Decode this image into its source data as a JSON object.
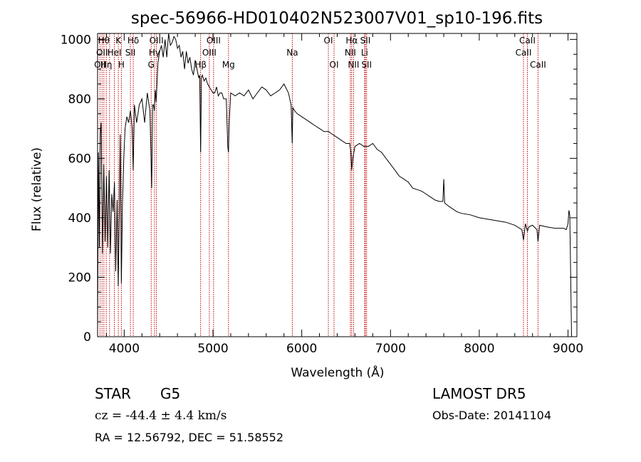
{
  "chart_data": {
    "type": "line",
    "title": "spec-56966-HD010402N523007V01_sp10-196.fits",
    "xlabel": "Wavelength (Å)",
    "ylabel": "Flux (relative)",
    "xlim": [
      3700,
      9100
    ],
    "ylim": [
      0,
      1020
    ],
    "xticks": [
      4000,
      5000,
      6000,
      7000,
      8000,
      9000
    ],
    "xtick_labels": [
      "4000",
      "5000",
      "6000",
      "7000",
      "8000",
      "9000"
    ],
    "yticks": [
      0,
      200,
      400,
      600,
      800,
      1000
    ],
    "ytick_labels": [
      "0",
      "200",
      "400",
      "600",
      "800",
      "1000"
    ],
    "grid": false,
    "legend": "none",
    "series": [
      {
        "x": [
          3700,
          3710,
          3720,
          3730,
          3740,
          3755,
          3770,
          3785,
          3800,
          3815,
          3830,
          3845,
          3860,
          3875,
          3890,
          3905,
          3920,
          3933,
          3945,
          3955,
          3968,
          3980,
          3995,
          4010,
          4030,
          4050,
          4070,
          4090,
          4101,
          4115,
          4140,
          4170,
          4200,
          4230,
          4260,
          4290,
          4310,
          4320,
          4330,
          4340,
          4350,
          4360,
          4380,
          4400,
          4420,
          4440,
          4460,
          4480,
          4500,
          4520,
          4540,
          4560,
          4580,
          4600,
          4620,
          4640,
          4660,
          4680,
          4700,
          4720,
          4740,
          4760,
          4780,
          4800,
          4820,
          4840,
          4850,
          4861,
          4870,
          4880,
          4900,
          4920,
          4940,
          4960,
          4980,
          5000,
          5020,
          5040,
          5060,
          5080,
          5100,
          5120,
          5150,
          5167,
          5175,
          5183,
          5200,
          5250,
          5300,
          5350,
          5400,
          5450,
          5500,
          5550,
          5600,
          5650,
          5700,
          5750,
          5800,
          5850,
          5880,
          5893,
          5900,
          5920,
          5950,
          6000,
          6050,
          6100,
          6150,
          6200,
          6250,
          6300,
          6350,
          6400,
          6450,
          6500,
          6540,
          6555,
          6563,
          6575,
          6600,
          6650,
          6700,
          6750,
          6800,
          6850,
          6900,
          6950,
          7000,
          7050,
          7100,
          7150,
          7200,
          7250,
          7300,
          7350,
          7400,
          7450,
          7500,
          7550,
          7590,
          7600,
          7610,
          7650,
          7700,
          7750,
          7800,
          7900,
          8000,
          8100,
          8200,
          8300,
          8400,
          8480,
          8498,
          8520,
          8542,
          8560,
          8600,
          8650,
          8662,
          8680,
          8750,
          8850,
          8950,
          8980,
          9000,
          9010,
          9020,
          9030,
          9040
        ],
        "y": [
          0,
          620,
          300,
          680,
          720,
          280,
          580,
          320,
          540,
          300,
          560,
          280,
          480,
          420,
          520,
          220,
          460,
          170,
          420,
          680,
          180,
          440,
          600,
          700,
          740,
          720,
          760,
          700,
          560,
          780,
          720,
          780,
          800,
          720,
          820,
          760,
          500,
          780,
          780,
          760,
          830,
          790,
          920,
          960,
          980,
          940,
          1000,
          940,
          1050,
          980,
          990,
          1010,
          1000,
          970,
          980,
          940,
          960,
          900,
          960,
          920,
          940,
          900,
          880,
          930,
          900,
          870,
          880,
          620,
          870,
          880,
          860,
          870,
          850,
          840,
          830,
          820,
          820,
          840,
          810,
          820,
          820,
          800,
          800,
          640,
          620,
          720,
          820,
          810,
          820,
          810,
          830,
          800,
          820,
          840,
          830,
          810,
          820,
          830,
          850,
          820,
          780,
          650,
          770,
          760,
          750,
          740,
          730,
          720,
          710,
          700,
          690,
          690,
          680,
          670,
          660,
          650,
          650,
          620,
          560,
          600,
          640,
          650,
          640,
          640,
          650,
          630,
          620,
          600,
          580,
          560,
          540,
          530,
          520,
          500,
          495,
          490,
          480,
          470,
          460,
          455,
          455,
          530,
          450,
          440,
          430,
          420,
          415,
          410,
          400,
          395,
          390,
          385,
          375,
          360,
          325,
          380,
          355,
          370,
          375,
          360,
          320,
          375,
          370,
          365,
          365,
          360,
          380,
          425,
          410,
          200,
          0
        ]
      }
    ],
    "line_markers": [
      {
        "x": 3727,
        "label": "OII",
        "row": 2
      },
      {
        "x": 3750,
        "label": "OII",
        "row": 1
      },
      {
        "x": 3771,
        "label": "Hθ",
        "row": 0
      },
      {
        "x": 3798,
        "label": "Hη",
        "row": 2
      },
      {
        "x": 3835,
        "label": "",
        "row": 0
      },
      {
        "x": 3889,
        "label": "HeI",
        "row": 1
      },
      {
        "x": 3934,
        "label": "K",
        "row": 0
      },
      {
        "x": 3968,
        "label": "H",
        "row": 2
      },
      {
        "x": 4070,
        "label": "SII",
        "row": 1
      },
      {
        "x": 4102,
        "label": "Hδ",
        "row": 0
      },
      {
        "x": 4304,
        "label": "G",
        "row": 2
      },
      {
        "x": 4341,
        "label": "Hγ",
        "row": 1
      },
      {
        "x": 4363,
        "label": "OIII",
        "row": 0
      },
      {
        "x": 4861,
        "label": "Hβ",
        "row": 2
      },
      {
        "x": 4959,
        "label": "OIII",
        "row": 1
      },
      {
        "x": 5007,
        "label": "OIII",
        "row": 0
      },
      {
        "x": 5175,
        "label": "Mg",
        "row": 2
      },
      {
        "x": 5894,
        "label": "Na",
        "row": 1
      },
      {
        "x": 6300,
        "label": "OI",
        "row": 0
      },
      {
        "x": 6364,
        "label": "OI",
        "row": 2
      },
      {
        "x": 6548,
        "label": "NII",
        "row": 1
      },
      {
        "x": 6563,
        "label": "Hα",
        "row": 0
      },
      {
        "x": 6584,
        "label": "NII",
        "row": 2
      },
      {
        "x": 6708,
        "label": "Li",
        "row": 1
      },
      {
        "x": 6717,
        "label": "SII",
        "row": 0
      },
      {
        "x": 6731,
        "label": "SII",
        "row": 2
      },
      {
        "x": 8498,
        "label": "CaII",
        "row": 1
      },
      {
        "x": 8542,
        "label": "CaII",
        "row": 0
      },
      {
        "x": 8662,
        "label": "CaII",
        "row": 2
      }
    ]
  },
  "info": {
    "object_class": "STAR",
    "subclass": "G5",
    "survey": "LAMOST DR5",
    "cz": "cz = -44.4 ± 4.4 km/s",
    "obs_date": "Obs-Date: 20141104",
    "coords": "RA =  12.56792, DEC =  51.58552"
  },
  "colors": {
    "spectrum": "#000000",
    "line_marker": "#c00000",
    "axes": "#000000",
    "background": "#ffffff"
  }
}
